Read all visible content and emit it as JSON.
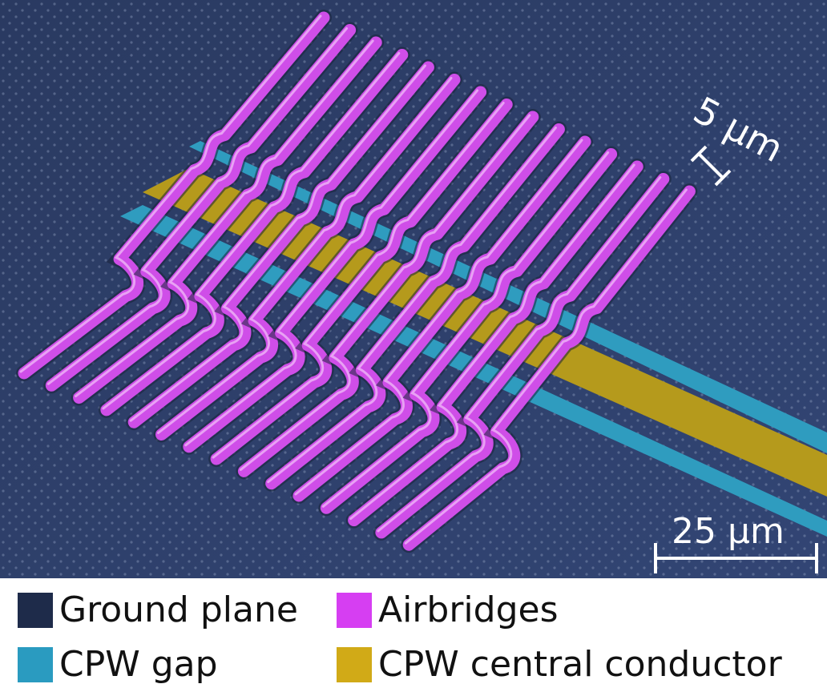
{
  "figure": {
    "scale_bar_small": "5 µm",
    "scale_bar_large": "25 µm",
    "airbridge_count": 15
  },
  "legend": {
    "items": [
      {
        "label": "Ground plane",
        "color": "#1e2b4a"
      },
      {
        "label": "Airbridges",
        "color": "#d63ef2"
      },
      {
        "label": "CPW gap",
        "color": "#2a9bc0"
      },
      {
        "label": "CPW central conductor",
        "color": "#d1aa17"
      }
    ]
  },
  "colors": {
    "ground": "#2c3c63",
    "gap": "#2f9cbf",
    "conductor": "#b59a1c",
    "airbridge": "#cf4ee8",
    "scale_bar": "#ffffff"
  }
}
